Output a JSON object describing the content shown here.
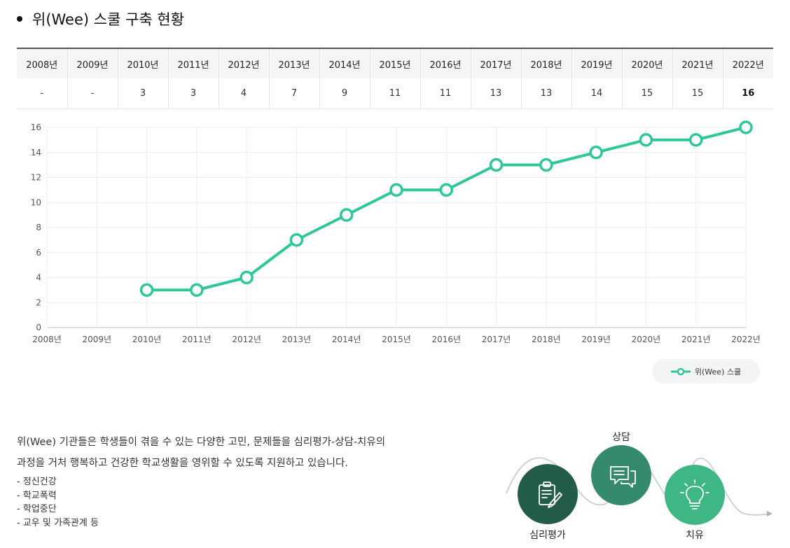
{
  "heading": {
    "title": "위(Wee) 스쿨 구축 현황"
  },
  "table": {
    "headers": [
      "2008년",
      "2009년",
      "2010년",
      "2011년",
      "2012년",
      "2013년",
      "2014년",
      "2015년",
      "2016년",
      "2017년",
      "2018년",
      "2019년",
      "2020년",
      "2021년",
      "2022년"
    ],
    "values": [
      "-",
      "-",
      "3",
      "3",
      "4",
      "7",
      "9",
      "11",
      "11",
      "13",
      "13",
      "14",
      "15",
      "15",
      "16"
    ]
  },
  "chart_data": {
    "type": "line",
    "categories": [
      "2008년",
      "2009년",
      "2010년",
      "2011년",
      "2012년",
      "2013년",
      "2014년",
      "2015년",
      "2016년",
      "2017년",
      "2018년",
      "2019년",
      "2020년",
      "2021년",
      "2022년"
    ],
    "series": [
      {
        "name": "위(Wee) 스쿨",
        "values": [
          null,
          null,
          3,
          3,
          4,
          7,
          9,
          11,
          11,
          13,
          13,
          14,
          15,
          15,
          16
        ]
      }
    ],
    "ylim": [
      0,
      16
    ],
    "yticks": [
      0,
      2,
      4,
      6,
      8,
      10,
      12,
      14,
      16
    ],
    "grid": true,
    "legend_position": "bottom-right",
    "line_color": "#2fc79a"
  },
  "description": {
    "line1": "위(Wee) 기관들은 학생들이 겪을 수 있는 다양한 고민, 문제들을 심리평가-상담-치유의",
    "line2": "과정을 거처 행복하고 건강한 학교생활을 영위할 수 있도록 지원하고 있습니다.",
    "items": [
      "- 정신건강",
      "- 학교폭력",
      "- 학업중단",
      "- 교우 및 가족관계 등"
    ]
  },
  "flow": {
    "steps": [
      {
        "label": "심리평가",
        "color": "#235c49",
        "icon": "clipboard-pen-icon"
      },
      {
        "label": "상담",
        "color": "#358a6b",
        "icon": "chat-bubble-icon"
      },
      {
        "label": "치유",
        "color": "#3fb785",
        "icon": "lightbulb-icon"
      }
    ]
  }
}
